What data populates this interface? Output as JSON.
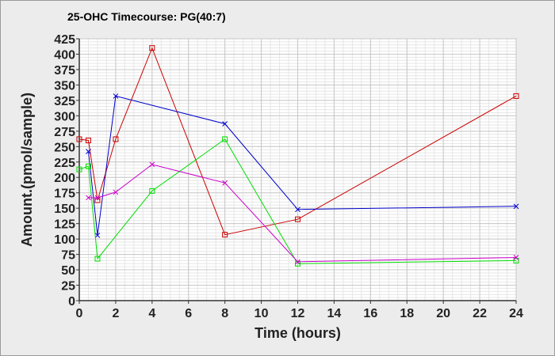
{
  "chart_data": {
    "type": "line",
    "title": "25-OHC Timecourse: PG(40:7)",
    "xlabel": "Time (hours)",
    "ylabel": "Amount.(pmol/sample)",
    "xlim": [
      0,
      24
    ],
    "ylim": [
      0,
      425
    ],
    "xticks": [
      0,
      2,
      4,
      6,
      8,
      10,
      12,
      14,
      16,
      18,
      20,
      22,
      24
    ],
    "yticks": [
      0,
      25,
      50,
      75,
      100,
      125,
      150,
      175,
      200,
      225,
      250,
      275,
      300,
      325,
      350,
      375,
      400,
      425
    ],
    "grid": true,
    "legend": "none",
    "series": [
      {
        "color": "#cc0000",
        "marker": "square",
        "points": [
          [
            0,
            262
          ],
          [
            0.5,
            260
          ],
          [
            1,
            163
          ],
          [
            2,
            262
          ],
          [
            4,
            410
          ],
          [
            8,
            107
          ],
          [
            12,
            132
          ],
          [
            24,
            332
          ]
        ]
      },
      {
        "color": "#0000cc",
        "marker": "x",
        "points": [
          [
            0.5,
            242
          ],
          [
            1,
            106
          ],
          [
            2,
            332
          ],
          [
            8,
            287
          ],
          [
            12,
            148
          ],
          [
            24,
            153
          ]
        ]
      },
      {
        "color": "#00dd00",
        "marker": "square",
        "points": [
          [
            0,
            213
          ],
          [
            0.5,
            218
          ],
          [
            1,
            68
          ],
          [
            4,
            178
          ],
          [
            8,
            262
          ],
          [
            12,
            60
          ],
          [
            24,
            65
          ]
        ]
      },
      {
        "color": "#cc00cc",
        "marker": "x",
        "points": [
          [
            0.5,
            167
          ],
          [
            1,
            167
          ],
          [
            2,
            176
          ],
          [
            4,
            221
          ],
          [
            8,
            191
          ],
          [
            12,
            63
          ],
          [
            24,
            70
          ]
        ]
      }
    ]
  }
}
